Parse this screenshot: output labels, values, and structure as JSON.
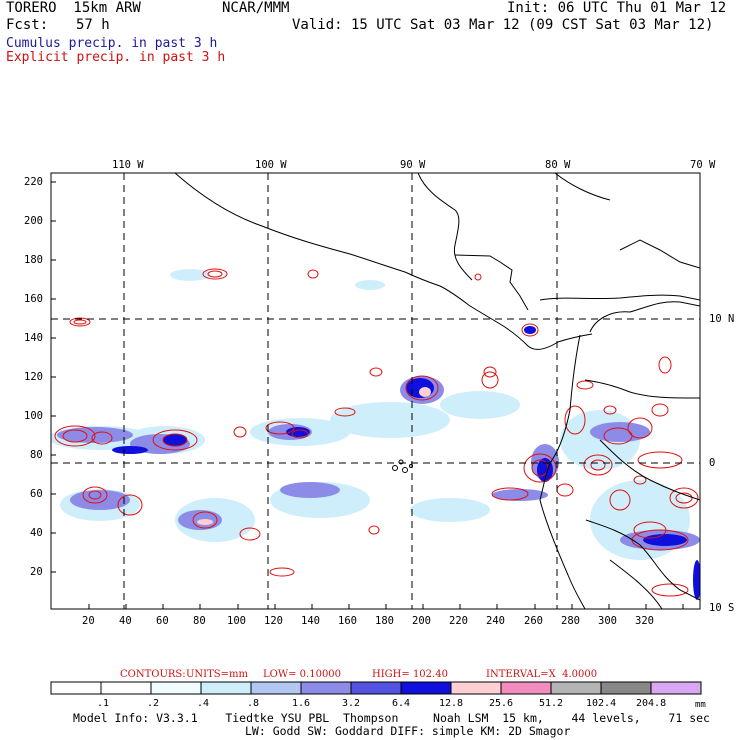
{
  "header": {
    "model": "TORERO  15km ARW",
    "org": "NCAR/MMM",
    "init": "Init: 06 UTC Thu 01 Mar 12",
    "fcst_label": "Fcst:",
    "fcst_value": "57 h",
    "valid": "Valid: 15 UTC Sat 03 Mar 12 (09 CST Sat 03 Mar 12)",
    "cumulus": "Cumulus precip. in past 3 h",
    "explicit": "Explicit precip. in past 3 h"
  },
  "axes": {
    "top": [
      "110 W",
      "100 W",
      "90 W",
      "80 W",
      "70 W"
    ],
    "right": [
      "10 N",
      "0",
      "10 S"
    ],
    "left": [
      "220",
      "200",
      "180",
      "160",
      "140",
      "120",
      "100",
      "80",
      "60",
      "40",
      "20"
    ],
    "bottom": [
      "20",
      "40",
      "60",
      "80",
      "100",
      "120",
      "140",
      "160",
      "180",
      "200",
      "220",
      "240",
      "260",
      "280",
      "300",
      "320"
    ]
  },
  "contours": {
    "label": "CONTOURS:",
    "units": "UNITS=mm",
    "low": "LOW= 0.10000",
    "high": "HIGH= 102.40",
    "interval": "INTERVAL=X  4.0000"
  },
  "legend": {
    "labels": [
      ".1",
      ".2",
      ".4",
      ".8",
      "1.6",
      "3.2",
      "6.4",
      "12.8",
      "25.6",
      "51.2",
      "102.4",
      "204.8"
    ],
    "unit": "mm",
    "colors": [
      "#ffffff",
      "#ffffff",
      "#f0fcff",
      "#cfeefb",
      "#b2c8f2",
      "#8c8ce8",
      "#5454e2",
      "#1010dc",
      "#fcd0d4",
      "#f28cbe",
      "#b4b4b4",
      "#888888",
      "#d8a8f2"
    ]
  },
  "footer": {
    "line1": "Model Info: V3.3.1    Tiedtke YSU PBL  Thompson     Noah LSM  15 km,    44 levels,    71 sec",
    "line2": "LW: Godd SW: Goddard DIFF: simple KM: 2D Smagor"
  }
}
